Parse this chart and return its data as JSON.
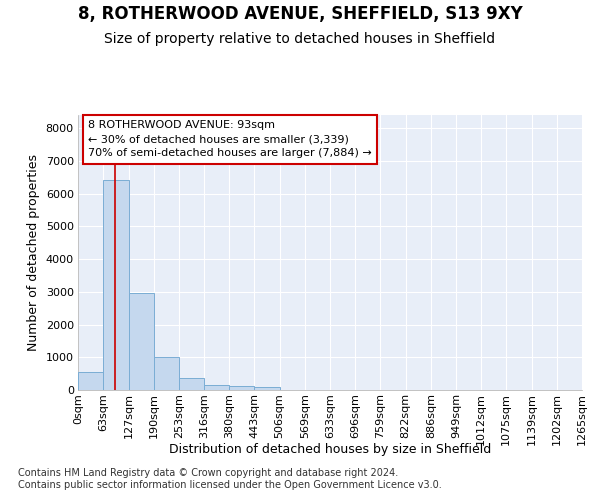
{
  "title1": "8, ROTHERWOOD AVENUE, SHEFFIELD, S13 9XY",
  "title2": "Size of property relative to detached houses in Sheffield",
  "xlabel": "Distribution of detached houses by size in Sheffield",
  "ylabel": "Number of detached properties",
  "bin_edges": [
    0,
    63,
    127,
    190,
    253,
    316,
    380,
    443,
    506,
    569,
    633,
    696,
    759,
    822,
    886,
    949,
    1012,
    1075,
    1139,
    1202,
    1265
  ],
  "bar_heights": [
    550,
    6400,
    2950,
    1000,
    380,
    165,
    110,
    90,
    0,
    0,
    0,
    0,
    0,
    0,
    0,
    0,
    0,
    0,
    0,
    0
  ],
  "bar_color": "#c5d8ee",
  "bar_edge_color": "#7aadd4",
  "property_size": 93,
  "red_line_color": "#cc0000",
  "annotation_line1": "8 ROTHERWOOD AVENUE: 93sqm",
  "annotation_line2": "← 30% of detached houses are smaller (3,339)",
  "annotation_line3": "70% of semi-detached houses are larger (7,884) →",
  "annotation_box_color": "#ffffff",
  "annotation_box_edge": "#cc0000",
  "ylim": [
    0,
    8400
  ],
  "yticks": [
    0,
    1000,
    2000,
    3000,
    4000,
    5000,
    6000,
    7000,
    8000
  ],
  "fig_background": "#ffffff",
  "plot_background": "#e8eef8",
  "grid_color": "#ffffff",
  "footer_text": "Contains HM Land Registry data © Crown copyright and database right 2024.\nContains public sector information licensed under the Open Government Licence v3.0.",
  "title1_fontsize": 12,
  "title2_fontsize": 10,
  "tick_label_fontsize": 8,
  "ylabel_fontsize": 9,
  "xlabel_fontsize": 9,
  "footer_fontsize": 7
}
